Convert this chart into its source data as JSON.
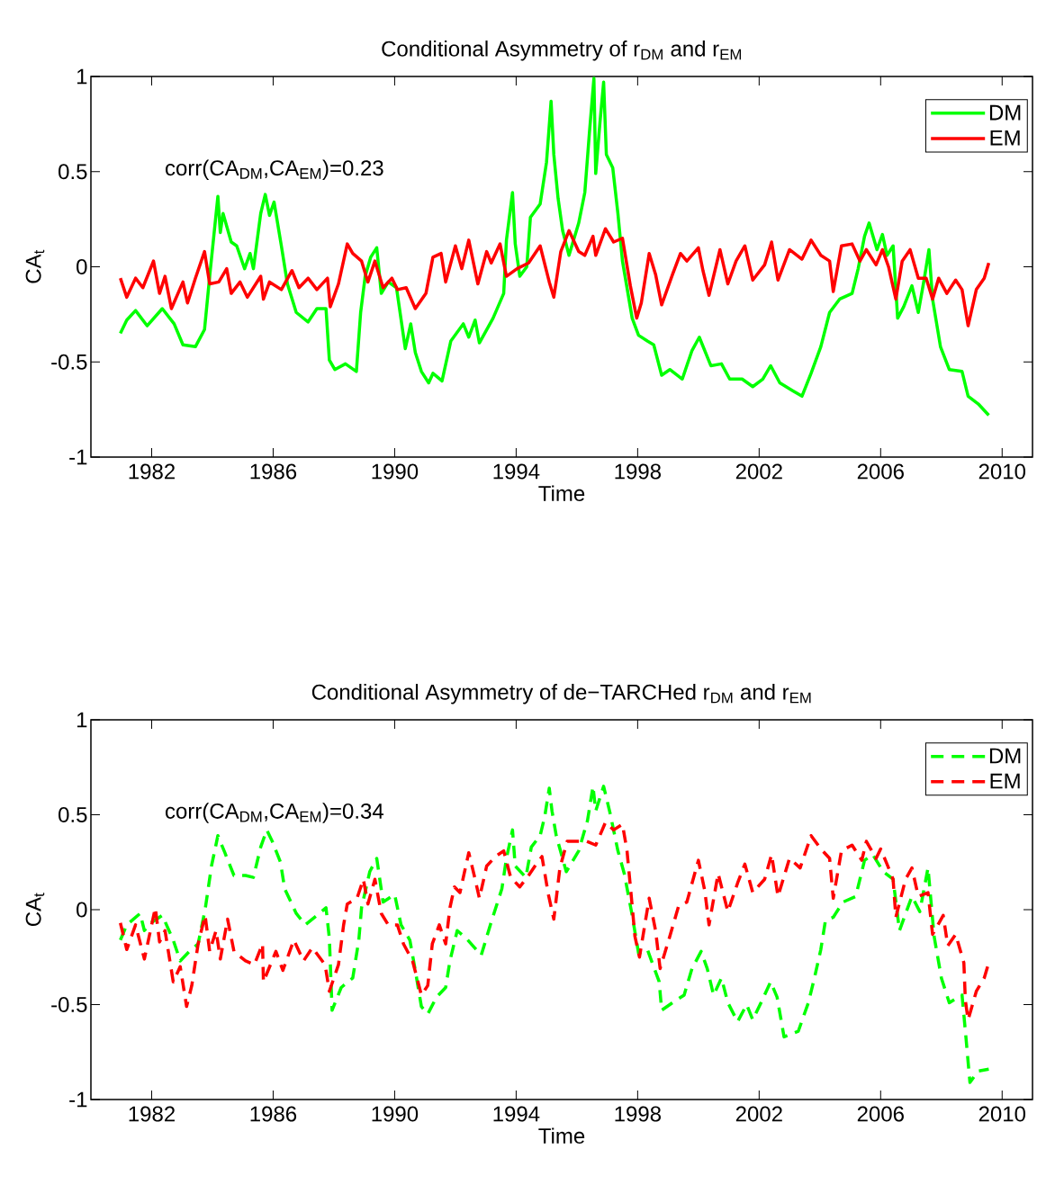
{
  "chart_data": [
    {
      "type": "line",
      "title": "Conditional Asymmetry of r$_{DM}$ and r$_{EM}$",
      "xlabel": "Time",
      "ylabel": "CA$_{t}$",
      "xlim": [
        1980,
        2011
      ],
      "ylim": [
        -1,
        1
      ],
      "xticks": [
        1982,
        1986,
        1990,
        1994,
        1998,
        2002,
        2006,
        2010
      ],
      "yticks": [
        -1,
        -0.5,
        0,
        0.5,
        1
      ],
      "legend": "top right",
      "line_style": "solid",
      "annotations": [
        "corr(CA$_{DM}$,CA$_{EM}$)=0.23"
      ],
      "series": [
        {
          "name": "DM",
          "color": "#00ff00",
          "x": [
            1980.97,
            1981.18,
            1981.47,
            1981.85,
            1982.35,
            1982.74,
            1983.03,
            1983.44,
            1983.74,
            1983.91,
            1984.18,
            1984.26,
            1984.35,
            1984.62,
            1984.8,
            1985.06,
            1985.24,
            1985.35,
            1985.59,
            1985.74,
            1985.88,
            1986.03,
            1986.27,
            1986.47,
            1986.76,
            1987.15,
            1987.44,
            1987.74,
            1987.85,
            1988.03,
            1988.38,
            1988.74,
            1988.88,
            1989.03,
            1989.21,
            1989.41,
            1989.56,
            1989.79,
            1990.06,
            1990.35,
            1990.53,
            1990.68,
            1990.88,
            1991.12,
            1991.26,
            1991.56,
            1991.85,
            1992.26,
            1992.44,
            1992.65,
            1992.79,
            1993.24,
            1993.59,
            1993.68,
            1993.88,
            1993.97,
            1994.12,
            1994.35,
            1994.47,
            1994.79,
            1995.0,
            1995.15,
            1995.24,
            1995.38,
            1995.53,
            1995.74,
            1996.06,
            1996.26,
            1996.41,
            1996.56,
            1996.62,
            1996.76,
            1996.88,
            1996.97,
            1997.18,
            1997.35,
            1997.5,
            1997.82,
            1998.03,
            1998.32,
            1998.53,
            1998.79,
            1999.06,
            1999.47,
            1999.79,
            2000.03,
            2000.41,
            2000.76,
            2001.03,
            2001.44,
            2001.79,
            2002.12,
            2002.38,
            2002.68,
            2003.09,
            2003.41,
            2003.71,
            2004.03,
            2004.32,
            2004.65,
            2005.06,
            2005.26,
            2005.47,
            2005.62,
            2005.88,
            2006.06,
            2006.21,
            2006.41,
            2006.56,
            2006.76,
            2007.03,
            2007.24,
            2007.44,
            2007.59,
            2007.71,
            2007.97,
            2008.26,
            2008.68,
            2008.88,
            2009.21,
            2009.56
          ],
          "values": [
            -0.35,
            -0.28,
            -0.23,
            -0.31,
            -0.22,
            -0.3,
            -0.41,
            -0.42,
            -0.33,
            -0.05,
            0.37,
            0.18,
            0.28,
            0.13,
            0.11,
            -0.01,
            0.07,
            -0.01,
            0.28,
            0.38,
            0.27,
            0.34,
            0.11,
            -0.09,
            -0.24,
            -0.29,
            -0.22,
            -0.22,
            -0.49,
            -0.54,
            -0.51,
            -0.55,
            -0.24,
            -0.05,
            0.05,
            0.1,
            -0.14,
            -0.08,
            -0.11,
            -0.43,
            -0.3,
            -0.45,
            -0.55,
            -0.61,
            -0.56,
            -0.6,
            -0.39,
            -0.3,
            -0.37,
            -0.28,
            -0.4,
            -0.27,
            -0.14,
            0.14,
            0.39,
            0.12,
            -0.05,
            0.0,
            0.26,
            0.33,
            0.55,
            0.87,
            0.59,
            0.36,
            0.19,
            0.06,
            0.23,
            0.39,
            0.7,
            0.99,
            0.49,
            0.76,
            0.97,
            0.59,
            0.52,
            0.28,
            0.03,
            -0.27,
            -0.36,
            -0.39,
            -0.41,
            -0.57,
            -0.54,
            -0.59,
            -0.44,
            -0.37,
            -0.52,
            -0.51,
            -0.59,
            -0.59,
            -0.63,
            -0.59,
            -0.52,
            -0.61,
            -0.65,
            -0.68,
            -0.56,
            -0.42,
            -0.24,
            -0.17,
            -0.14,
            -0.01,
            0.16,
            0.23,
            0.09,
            0.17,
            0.06,
            0.11,
            -0.27,
            -0.21,
            -0.1,
            -0.24,
            -0.06,
            0.09,
            -0.17,
            -0.42,
            -0.54,
            -0.55,
            -0.68,
            -0.72,
            -0.78
          ]
        },
        {
          "name": "EM",
          "color": "#ff0000",
          "x": [
            1980.97,
            1981.18,
            1981.47,
            1981.71,
            1982.06,
            1982.26,
            1982.44,
            1982.65,
            1983.03,
            1983.18,
            1983.44,
            1983.74,
            1983.91,
            1984.21,
            1984.47,
            1984.62,
            1984.91,
            1985.15,
            1985.59,
            1985.68,
            1985.88,
            1986.27,
            1986.62,
            1986.85,
            1987.15,
            1987.44,
            1987.79,
            1987.88,
            1988.15,
            1988.44,
            1988.62,
            1988.91,
            1989.12,
            1989.35,
            1989.62,
            1989.91,
            1990.09,
            1990.38,
            1990.68,
            1991.03,
            1991.26,
            1991.53,
            1991.68,
            1992.0,
            1992.21,
            1992.44,
            1992.74,
            1993.03,
            1993.18,
            1993.47,
            1993.68,
            1994.03,
            1994.41,
            1994.79,
            1995.09,
            1995.24,
            1995.47,
            1995.74,
            1996.06,
            1996.26,
            1996.53,
            1996.62,
            1996.94,
            1997.21,
            1997.5,
            1997.76,
            1997.97,
            1998.12,
            1998.38,
            1998.59,
            1998.79,
            1999.15,
            1999.41,
            1999.62,
            2000.0,
            2000.15,
            2000.35,
            2000.71,
            2000.97,
            2001.24,
            2001.53,
            2001.79,
            2002.18,
            2002.41,
            2002.62,
            2003.0,
            2003.41,
            2003.71,
            2004.03,
            2004.32,
            2004.44,
            2004.71,
            2005.06,
            2005.32,
            2005.53,
            2005.85,
            2006.06,
            2006.26,
            2006.5,
            2006.71,
            2006.97,
            2007.24,
            2007.5,
            2007.71,
            2007.91,
            2008.18,
            2008.47,
            2008.68,
            2008.88,
            2009.15,
            2009.41,
            2009.56
          ],
          "values": [
            -0.06,
            -0.16,
            -0.06,
            -0.11,
            0.03,
            -0.14,
            -0.05,
            -0.22,
            -0.08,
            -0.19,
            -0.06,
            0.08,
            -0.09,
            -0.08,
            -0.01,
            -0.14,
            -0.08,
            -0.16,
            -0.05,
            -0.17,
            -0.08,
            -0.12,
            -0.02,
            -0.11,
            -0.06,
            -0.12,
            -0.06,
            -0.21,
            -0.09,
            0.12,
            0.07,
            0.03,
            -0.08,
            0.03,
            -0.11,
            -0.06,
            -0.12,
            -0.11,
            -0.22,
            -0.14,
            0.05,
            0.07,
            -0.08,
            0.11,
            -0.01,
            0.14,
            -0.09,
            0.08,
            0.02,
            0.12,
            -0.05,
            -0.01,
            0.02,
            0.11,
            -0.08,
            -0.16,
            0.08,
            0.19,
            0.08,
            0.06,
            0.16,
            0.06,
            0.2,
            0.13,
            0.15,
            -0.1,
            -0.27,
            -0.19,
            0.07,
            -0.04,
            -0.2,
            -0.04,
            0.07,
            0.03,
            0.1,
            -0.02,
            -0.15,
            0.09,
            -0.09,
            0.03,
            0.11,
            -0.07,
            0.01,
            0.13,
            -0.07,
            0.09,
            0.04,
            0.14,
            0.06,
            0.03,
            -0.13,
            0.11,
            0.12,
            0.03,
            0.09,
            0.01,
            0.09,
            0.0,
            -0.17,
            0.03,
            0.09,
            -0.06,
            -0.06,
            -0.17,
            -0.06,
            -0.14,
            -0.07,
            -0.12,
            -0.31,
            -0.12,
            -0.06,
            0.02
          ]
        }
      ]
    },
    {
      "type": "line",
      "title": "Conditional Asymmetry of de−TARCHed r$_{DM}$ and r$_{EM}$",
      "xlabel": "Time",
      "ylabel": "CA$_{t}$",
      "xlim": [
        1980,
        2011
      ],
      "ylim": [
        -1,
        1
      ],
      "xticks": [
        1982,
        1986,
        1990,
        1994,
        1998,
        2002,
        2006,
        2010
      ],
      "yticks": [
        -1,
        -0.5,
        0,
        0.5,
        1
      ],
      "legend": "top right",
      "line_style": "dashed",
      "annotations": [
        "corr(CA$_{DM}$,CA$_{EM}$)=0.34"
      ],
      "series": [
        {
          "name": "DM",
          "color": "#00ff00",
          "x": [
            1980.97,
            1981.18,
            1981.62,
            1981.76,
            1981.97,
            1982.35,
            1982.71,
            1982.94,
            1983.24,
            1983.53,
            1983.76,
            1983.97,
            1984.18,
            1984.41,
            1984.71,
            1985.09,
            1985.35,
            1985.59,
            1985.79,
            1985.97,
            1986.24,
            1986.38,
            1986.76,
            1987.06,
            1987.44,
            1987.74,
            1987.85,
            1987.94,
            1988.24,
            1988.62,
            1988.82,
            1988.91,
            1989.18,
            1989.41,
            1989.62,
            1990.0,
            1990.21,
            1990.5,
            1990.68,
            1990.88,
            1991.09,
            1991.38,
            1991.68,
            1991.82,
            1992.06,
            1992.35,
            1992.85,
            1993.15,
            1993.53,
            1993.68,
            1993.88,
            1993.97,
            1994.32,
            1994.5,
            1994.79,
            1994.94,
            1995.09,
            1995.18,
            1995.32,
            1995.65,
            1996.06,
            1996.35,
            1996.53,
            1996.62,
            1996.88,
            1997.09,
            1997.35,
            1997.56,
            1997.82,
            1998.03,
            1998.32,
            1998.71,
            1998.79,
            1999.15,
            1999.53,
            1999.79,
            2000.09,
            2000.29,
            2000.5,
            2000.76,
            2000.97,
            2001.29,
            2001.59,
            2001.79,
            2002.06,
            2002.38,
            2002.59,
            2002.82,
            2003.29,
            2003.62,
            2003.82,
            2004.03,
            2004.18,
            2004.44,
            2004.76,
            2005.18,
            2005.47,
            2005.74,
            2006.09,
            2006.41,
            2006.62,
            2007.03,
            2007.29,
            2007.56,
            2007.76,
            2008.0,
            2008.26,
            2008.68,
            2008.79,
            2008.94,
            2009.21,
            2009.56
          ],
          "values": [
            -0.16,
            -0.08,
            -0.02,
            -0.11,
            -0.07,
            -0.03,
            -0.16,
            -0.27,
            -0.22,
            -0.18,
            0.0,
            0.23,
            0.39,
            0.3,
            0.18,
            0.18,
            0.17,
            0.33,
            0.42,
            0.36,
            0.25,
            0.11,
            -0.02,
            -0.08,
            -0.03,
            0.01,
            -0.15,
            -0.53,
            -0.41,
            -0.36,
            -0.16,
            0.01,
            0.2,
            0.27,
            0.04,
            0.08,
            -0.08,
            -0.16,
            -0.32,
            -0.51,
            -0.55,
            -0.46,
            -0.41,
            -0.27,
            -0.11,
            -0.15,
            -0.24,
            -0.08,
            0.11,
            0.27,
            0.42,
            0.23,
            0.17,
            0.33,
            0.39,
            0.49,
            0.64,
            0.52,
            0.39,
            0.2,
            0.31,
            0.47,
            0.65,
            0.52,
            0.65,
            0.51,
            0.31,
            0.19,
            -0.03,
            -0.23,
            -0.21,
            -0.38,
            -0.53,
            -0.49,
            -0.45,
            -0.31,
            -0.22,
            -0.31,
            -0.45,
            -0.36,
            -0.49,
            -0.59,
            -0.5,
            -0.58,
            -0.49,
            -0.38,
            -0.46,
            -0.67,
            -0.64,
            -0.49,
            -0.36,
            -0.21,
            -0.06,
            -0.04,
            0.04,
            0.07,
            0.26,
            0.29,
            0.2,
            0.16,
            -0.11,
            0.07,
            -0.01,
            0.22,
            -0.14,
            -0.36,
            -0.49,
            -0.45,
            -0.64,
            -0.91,
            -0.85,
            -0.84
          ]
        },
        {
          "name": "EM",
          "color": "#ff0000",
          "x": [
            1980.97,
            1981.18,
            1981.47,
            1981.76,
            1982.12,
            1982.26,
            1982.44,
            1982.71,
            1982.94,
            1983.15,
            1983.32,
            1983.53,
            1983.76,
            1983.91,
            1984.12,
            1984.26,
            1984.5,
            1984.71,
            1985.09,
            1985.38,
            1985.65,
            1985.68,
            1986.09,
            1986.32,
            1986.68,
            1987.0,
            1987.29,
            1987.71,
            1987.85,
            1988.15,
            1988.32,
            1988.44,
            1988.76,
            1988.97,
            1989.12,
            1989.35,
            1989.56,
            1989.79,
            1990.09,
            1990.29,
            1990.59,
            1990.88,
            1991.09,
            1991.24,
            1991.47,
            1991.68,
            1991.82,
            1991.97,
            1992.15,
            1992.44,
            1992.65,
            1992.79,
            1993.03,
            1993.32,
            1993.59,
            1993.82,
            1994.12,
            1994.41,
            1994.62,
            1994.85,
            1995.06,
            1995.24,
            1995.44,
            1995.68,
            1996.06,
            1996.32,
            1996.62,
            1996.94,
            1997.21,
            1997.5,
            1997.65,
            1997.82,
            1997.91,
            1998.06,
            1998.38,
            1998.59,
            1998.74,
            1999.06,
            1999.35,
            1999.62,
            2000.0,
            2000.21,
            2000.35,
            2000.65,
            2000.97,
            2001.29,
            2001.53,
            2001.79,
            2002.18,
            2002.41,
            2002.62,
            2003.0,
            2003.35,
            2003.71,
            2004.03,
            2004.32,
            2004.44,
            2004.71,
            2005.06,
            2005.38,
            2005.53,
            2005.85,
            2006.0,
            2006.21,
            2006.41,
            2006.5,
            2006.82,
            2007.03,
            2007.24,
            2007.56,
            2007.71,
            2008.06,
            2008.21,
            2008.47,
            2008.74,
            2008.79,
            2008.88,
            2009.15,
            2009.41,
            2009.56
          ],
          "values": [
            -0.07,
            -0.21,
            -0.08,
            -0.26,
            0.01,
            -0.17,
            -0.11,
            -0.38,
            -0.3,
            -0.51,
            -0.4,
            -0.18,
            -0.03,
            -0.22,
            -0.11,
            -0.26,
            -0.05,
            -0.22,
            -0.27,
            -0.29,
            -0.18,
            -0.38,
            -0.22,
            -0.32,
            -0.16,
            -0.27,
            -0.2,
            -0.29,
            -0.43,
            -0.29,
            -0.08,
            0.03,
            0.06,
            0.16,
            0.03,
            0.16,
            -0.02,
            -0.08,
            -0.08,
            -0.18,
            -0.27,
            -0.45,
            -0.4,
            -0.18,
            -0.08,
            -0.18,
            0.01,
            0.12,
            0.09,
            0.3,
            0.16,
            0.06,
            0.23,
            0.28,
            0.31,
            0.17,
            0.12,
            0.18,
            0.23,
            0.28,
            0.08,
            -0.05,
            0.22,
            0.36,
            0.36,
            0.36,
            0.34,
            0.46,
            0.42,
            0.45,
            0.31,
            0.02,
            -0.14,
            -0.25,
            0.06,
            -0.11,
            -0.31,
            -0.14,
            0.02,
            0.04,
            0.26,
            0.1,
            -0.08,
            0.19,
            -0.01,
            0.14,
            0.24,
            0.09,
            0.16,
            0.29,
            0.07,
            0.27,
            0.22,
            0.39,
            0.32,
            0.27,
            0.06,
            0.31,
            0.34,
            0.26,
            0.36,
            0.27,
            0.32,
            0.24,
            0.16,
            -0.04,
            0.16,
            0.22,
            0.07,
            0.09,
            -0.13,
            -0.03,
            -0.19,
            -0.13,
            -0.28,
            -0.48,
            -0.58,
            -0.43,
            -0.36,
            -0.28
          ]
        }
      ]
    }
  ]
}
